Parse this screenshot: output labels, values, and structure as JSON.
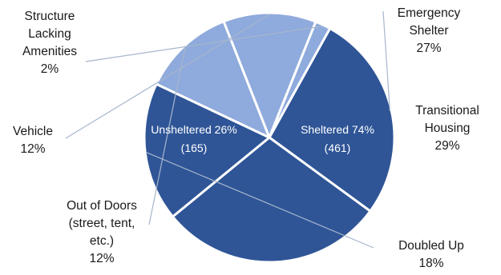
{
  "chart_data": {
    "type": "pie",
    "title": "",
    "colors": {
      "sheltered": "#2f5597",
      "unsheltered": "#8faadc",
      "border": "#ffffff",
      "leader": "#a6b6cc"
    },
    "slices": [
      {
        "label": [
          "Emergency",
          "Shelter"
        ],
        "value": 27,
        "value_text": "27%",
        "group": "sheltered"
      },
      {
        "label": [
          "Transitional",
          "Housing"
        ],
        "value": 29,
        "value_text": "29%",
        "group": "sheltered"
      },
      {
        "label": [
          "Doubled Up"
        ],
        "value": 18,
        "value_text": "18%",
        "group": "sheltered"
      },
      {
        "label": [
          "Out of Doors",
          "(street, tent,",
          "etc.)"
        ],
        "value": 12,
        "value_text": "12%",
        "group": "unsheltered"
      },
      {
        "label": [
          "Vehicle"
        ],
        "value": 12,
        "value_text": "12%",
        "group": "unsheltered"
      },
      {
        "label": [
          "Structure",
          "Lacking",
          "Amenities"
        ],
        "value": 2,
        "value_text": "2%",
        "group": "unsheltered"
      }
    ],
    "groups": [
      {
        "key": "sheltered",
        "label": "Sheltered 74%",
        "count": "(461)"
      },
      {
        "key": "unsheltered",
        "label": "Unsheltered 26%",
        "count": "(165)"
      }
    ]
  }
}
